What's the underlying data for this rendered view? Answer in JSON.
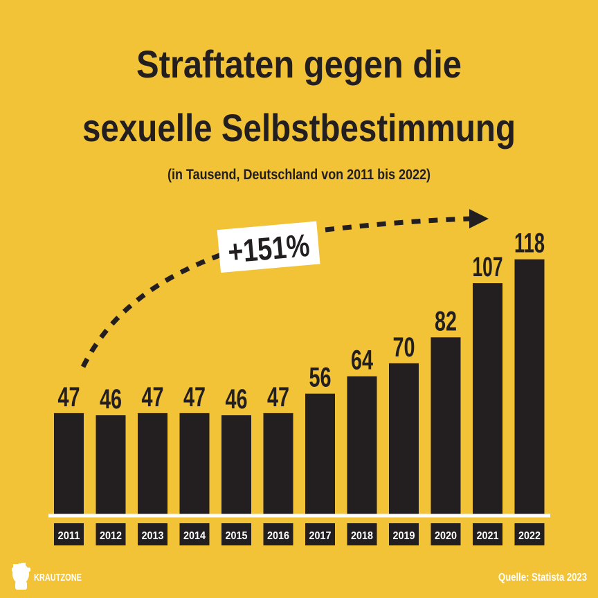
{
  "colors": {
    "background": "#f2c237",
    "bar": "#231f20",
    "text": "#231f20",
    "baseline": "#ffffff",
    "tick_label_text": "#ffffff",
    "logo": "#ffffff",
    "source_text": "#ffffff",
    "annotation_box": "#ffffff"
  },
  "header": {
    "title_line1": "Straftaten gegen die",
    "title_line2": "sexuelle Selbstbestimmung",
    "subtitle": "(in Tausend, Deutschland von 2011 bis 2022)"
  },
  "annotation": {
    "label": "+151%"
  },
  "footer": {
    "brand": "KRAUTZONE",
    "brand_icon": "krautzone-head-logo-icon",
    "source": "Quelle: Statista 2023"
  },
  "chart_data": {
    "type": "bar",
    "title": "Straftaten gegen die sexuelle Selbstbestimmung",
    "subtitle": "(in Tausend, Deutschland von 2011 bis 2022)",
    "categories": [
      "2011",
      "2012",
      "2013",
      "2014",
      "2015",
      "2016",
      "2017",
      "2018",
      "2019",
      "2020",
      "2021",
      "2022"
    ],
    "values": [
      47,
      46,
      47,
      47,
      46,
      47,
      56,
      64,
      70,
      82,
      107,
      118
    ],
    "data_labels": [
      "47",
      "46",
      "47",
      "47",
      "46",
      "47",
      "56",
      "64",
      "70",
      "82",
      "107",
      "118"
    ],
    "ylim": [
      0,
      118
    ],
    "grid": false,
    "legend": "none",
    "xlabel": "",
    "ylabel": ""
  }
}
